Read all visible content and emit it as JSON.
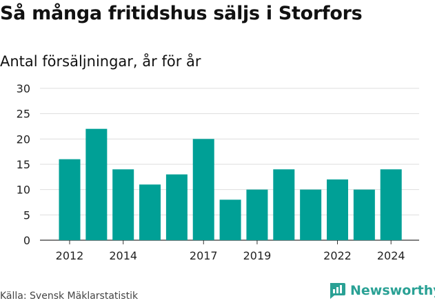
{
  "title": "Så många fritidshus säljs i Storfors",
  "subtitle": "Antal försäljningar, år för år",
  "source": "Källa: Svensk Mäklarstatistik",
  "brand": {
    "name": "Newsworthy",
    "color": "#2aa195",
    "icon": "newsworthy-logo-icon"
  },
  "chart_data": {
    "type": "bar",
    "categories": [
      "2012",
      "2013",
      "2014",
      "2015",
      "2016",
      "2017",
      "2018",
      "2019",
      "2020",
      "2021",
      "2022",
      "2023",
      "2024"
    ],
    "values": [
      16,
      22,
      14,
      11,
      13,
      20,
      8,
      10,
      14,
      10,
      12,
      10,
      14
    ],
    "x_tick_labels": [
      "2012",
      "2014",
      "2017",
      "2019",
      "2022",
      "2024"
    ],
    "ylim": [
      0,
      30
    ],
    "yticks": [
      0,
      5,
      10,
      15,
      20,
      25,
      30
    ],
    "bar_color": "#00a096",
    "grid": true,
    "xlabel": "",
    "ylabel": ""
  }
}
